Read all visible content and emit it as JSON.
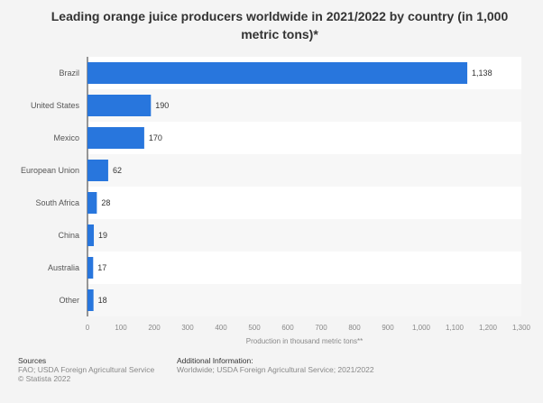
{
  "chart_data": {
    "type": "bar",
    "orientation": "horizontal",
    "title": "Leading orange juice producers worldwide in 2021/2022 by country (in 1,000 metric tons)*",
    "categories": [
      "Brazil",
      "United States",
      "Mexico",
      "European Union",
      "South Africa",
      "China",
      "Australia",
      "Other"
    ],
    "values": [
      1138,
      190,
      170,
      62,
      28,
      19,
      17,
      18
    ],
    "xlabel": "Production in thousand metric tons**",
    "ylabel": "",
    "xlim": [
      0,
      1300
    ],
    "ticks": [
      0,
      100,
      200,
      300,
      400,
      500,
      600,
      700,
      800,
      900,
      1000,
      1100,
      1200,
      1300
    ],
    "tick_labels": [
      "0",
      "100",
      "200",
      "300",
      "400",
      "500",
      "600",
      "700",
      "800",
      "900",
      "1,000",
      "1,100",
      "1,200",
      "1,300"
    ],
    "value_labels": [
      "1,138",
      "190",
      "170",
      "62",
      "28",
      "19",
      "17",
      "18"
    ],
    "grid": false,
    "bar_color": "#2876dd"
  },
  "footer": {
    "sources_label": "Sources",
    "sources": "FAO; USDA Foreign Agricultural Service",
    "copyright": "© Statista 2022",
    "additional_label": "Additional Information:",
    "additional": "Worldwide; USDA Foreign Agricultural Service; 2021/2022"
  }
}
